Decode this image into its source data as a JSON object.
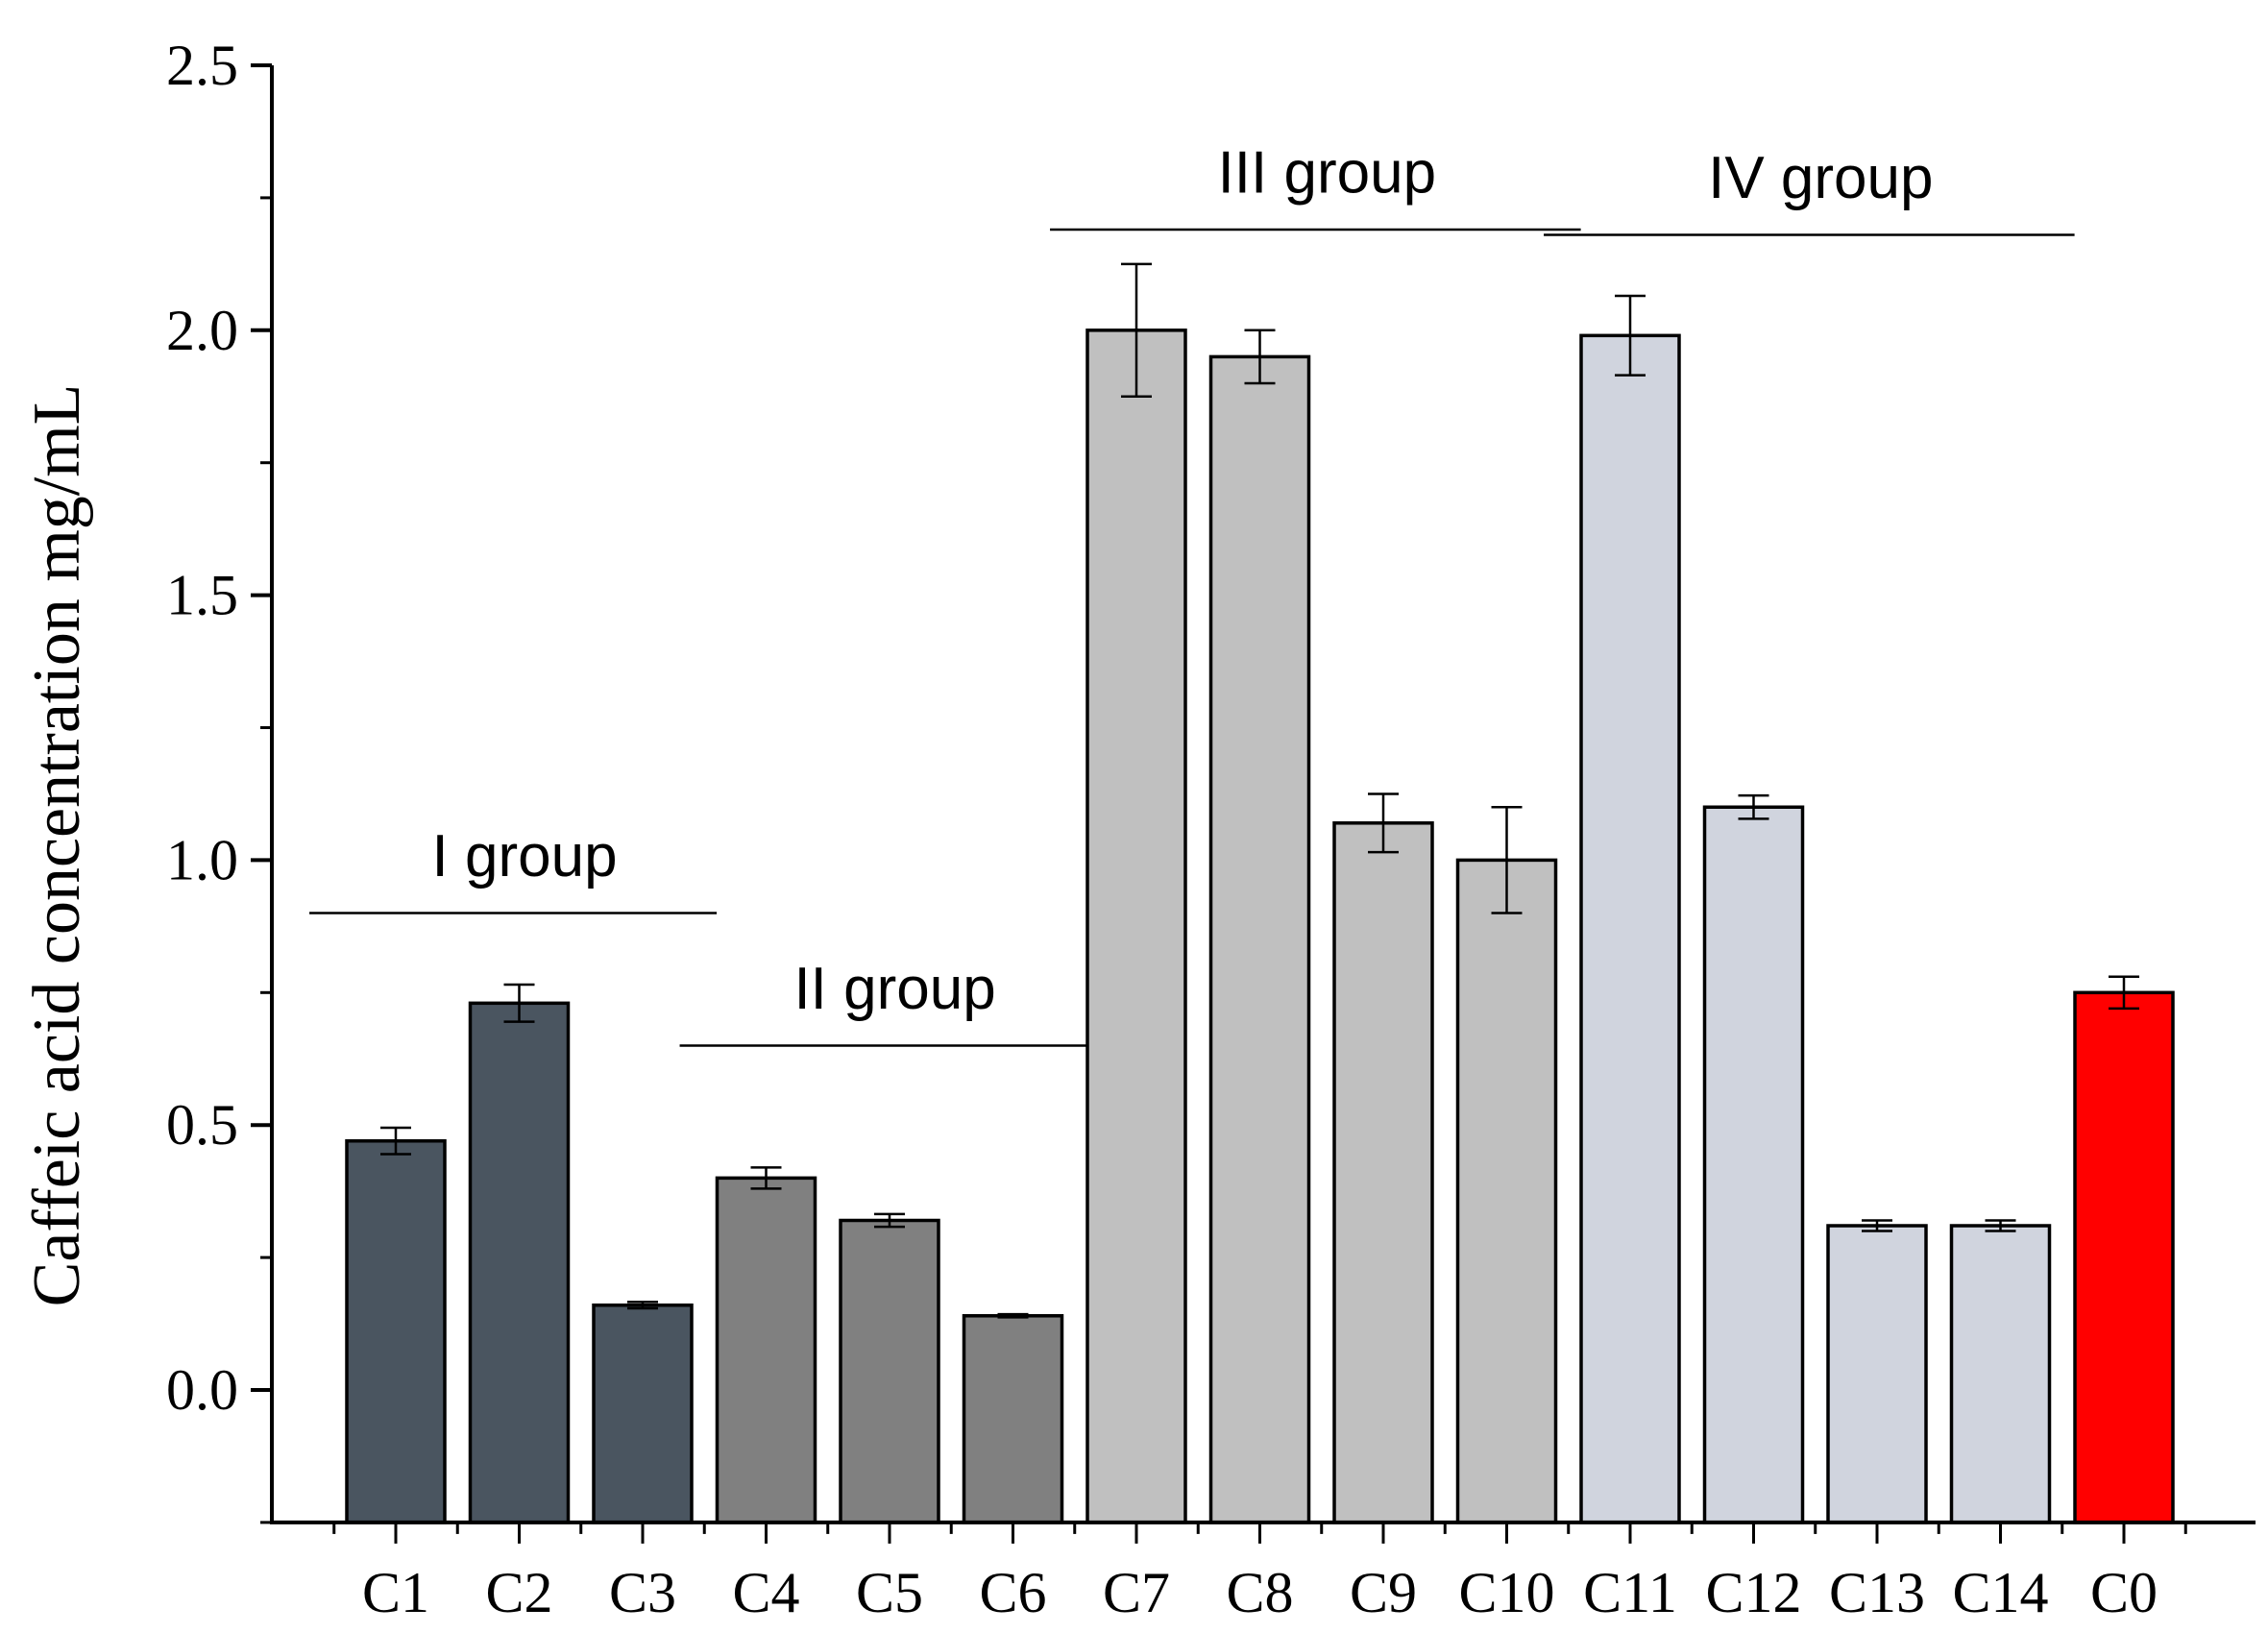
{
  "chart_data": {
    "type": "bar",
    "title": "",
    "xlabel": "",
    "ylabel": "Caffeic acid concentration mg/mL",
    "ylim": [
      -0.25,
      2.5
    ],
    "y_ticks": [
      "0.0",
      "0.5",
      "1.0",
      "1.5",
      "2.0",
      "2.5"
    ],
    "y_tick_values": [
      0.0,
      0.5,
      1.0,
      1.5,
      2.0,
      2.5
    ],
    "categories": [
      "C1",
      "C2",
      "C3",
      "C4",
      "C5",
      "C6",
      "C7",
      "C8",
      "C9",
      "C10",
      "C11",
      "C12",
      "C13",
      "C14",
      "C0"
    ],
    "values": [
      0.47,
      0.73,
      0.16,
      0.4,
      0.32,
      0.14,
      2.0,
      1.95,
      1.07,
      1.0,
      1.99,
      1.1,
      0.31,
      0.31,
      0.75
    ],
    "errors": [
      0.025,
      0.035,
      0.006,
      0.02,
      0.012,
      0.003,
      0.125,
      0.05,
      0.055,
      0.1,
      0.075,
      0.022,
      0.01,
      0.01,
      0.03
    ],
    "bar_colors": [
      "#4a5560",
      "#4a5560",
      "#4a5560",
      "#808080",
      "#808080",
      "#808080",
      "#c0c0c0",
      "#c0c0c0",
      "#c0c0c0",
      "#c0c0c0",
      "#d0d4de",
      "#d0d4de",
      "#d0d4de",
      "#d0d4de",
      "#ff0000"
    ],
    "groups": [
      {
        "label": "I group",
        "start": 0,
        "end": 2,
        "line_y": 0.9,
        "label_y": 0.97
      },
      {
        "label": "II group",
        "start": 3,
        "end": 5,
        "line_y": 0.65,
        "label_y": 0.72
      },
      {
        "label": "III group",
        "start": 6,
        "end": 9,
        "line_y": 2.19,
        "label_y": 2.26
      },
      {
        "label": "IV group",
        "start": 10,
        "end": 13,
        "line_y": 2.18,
        "label_y": 2.25
      }
    ],
    "grid": false,
    "legend": "none"
  }
}
